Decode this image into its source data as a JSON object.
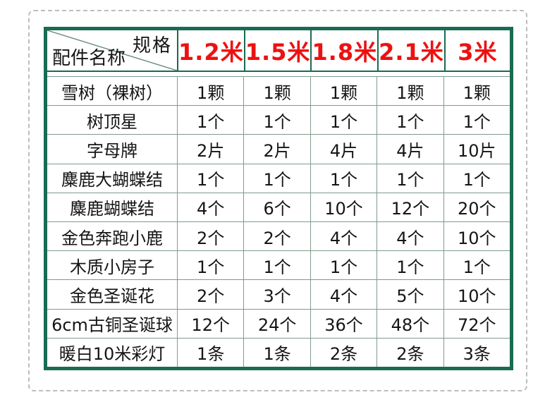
{
  "colors": {
    "background": "#ffffff",
    "dashed_frame": "#bdbdbd",
    "table_border_green": "#196b53",
    "grid_line": "#7f9b8d",
    "header_text_red": "#ec1111",
    "body_text": "#151515"
  },
  "chart_data": {
    "type": "table",
    "title": "",
    "corner": {
      "top_right": "规格",
      "bottom_left": "配件名称"
    },
    "columns": [
      "1.2米",
      "1.5米",
      "1.8米",
      "2.1米",
      "3米"
    ],
    "rows": [
      {
        "label": "雪树（裸树）",
        "values": [
          "1颗",
          "1颗",
          "1颗",
          "1颗",
          "1颗"
        ]
      },
      {
        "label": "树顶星",
        "values": [
          "1个",
          "1个",
          "1个",
          "1个",
          "1个"
        ]
      },
      {
        "label": "字母牌",
        "values": [
          "2片",
          "2片",
          "4片",
          "4片",
          "10片"
        ]
      },
      {
        "label": "麋鹿大蝴蝶结",
        "values": [
          "1个",
          "1个",
          "1个",
          "1个",
          "1个"
        ]
      },
      {
        "label": "麋鹿蝴蝶结",
        "values": [
          "4个",
          "6个",
          "10个",
          "12个",
          "20个"
        ]
      },
      {
        "label": "金色奔跑小鹿",
        "values": [
          "2个",
          "2个",
          "4个",
          "4个",
          "10个"
        ]
      },
      {
        "label": "木质小房子",
        "values": [
          "1个",
          "1个",
          "1个",
          "1个",
          "1个"
        ]
      },
      {
        "label": "金色圣诞花",
        "values": [
          "2个",
          "3个",
          "4个",
          "5个",
          "10个"
        ]
      },
      {
        "label": "6cm古铜圣诞球",
        "values": [
          "12个",
          "24个",
          "36个",
          "48个",
          "72个"
        ]
      },
      {
        "label": "暖白10米彩灯",
        "values": [
          "1条",
          "1条",
          "2条",
          "2条",
          "3条"
        ]
      }
    ]
  }
}
